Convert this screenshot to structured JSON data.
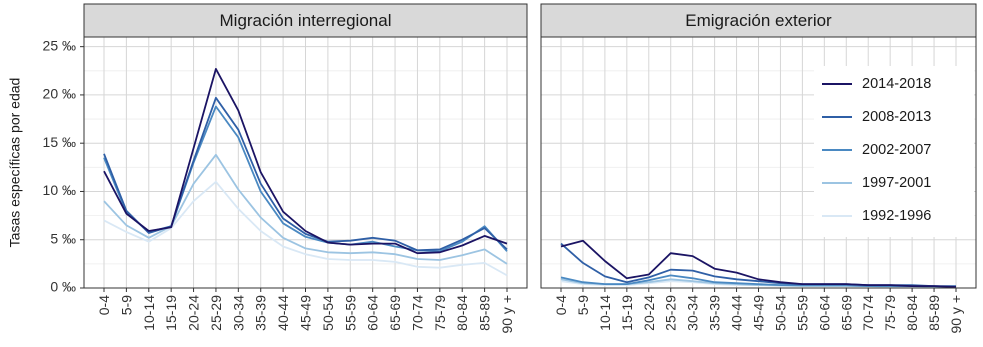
{
  "chart_data": {
    "type": "line",
    "ylabel": "Tasas específicas por edad",
    "y_unit": "‰",
    "ylim": [
      0,
      26
    ],
    "y_ticks": [
      0,
      5,
      10,
      15,
      20,
      25
    ],
    "y_tick_labels": [
      "0 ‰",
      "5 ‰",
      "10 ‰",
      "15 ‰",
      "20 ‰",
      "25 ‰"
    ],
    "categories": [
      "0-4",
      "5-9",
      "10-14",
      "15-19",
      "20-24",
      "25-29",
      "30-34",
      "35-39",
      "40-44",
      "45-49",
      "50-54",
      "55-59",
      "60-64",
      "65-69",
      "70-74",
      "75-79",
      "80-84",
      "85-89",
      "90 y +"
    ],
    "legend": {
      "position": "right, inside second panel",
      "entries": [
        {
          "label": "2014-2018",
          "color": "#1b1464"
        },
        {
          "label": "2008-2013",
          "color": "#2f5fa6"
        },
        {
          "label": "2002-2007",
          "color": "#4a89c2"
        },
        {
          "label": "1997-2001",
          "color": "#9cc4e2"
        },
        {
          "label": "1992-1996",
          "color": "#d9e8f5"
        }
      ]
    },
    "panels": [
      {
        "title": "Migración interregional",
        "series": [
          {
            "name": "1992-1996",
            "color": "#d9e8f5",
            "values": [
              7.0,
              5.8,
              4.8,
              6.2,
              9.0,
              11.0,
              8.2,
              5.9,
              4.3,
              3.5,
              3.0,
              2.9,
              2.9,
              2.7,
              2.2,
              2.1,
              2.4,
              2.6,
              1.3
            ]
          },
          {
            "name": "1997-2001",
            "color": "#9cc4e2",
            "values": [
              9.0,
              6.5,
              5.2,
              6.4,
              10.8,
              13.8,
              10.2,
              7.3,
              5.2,
              4.1,
              3.7,
              3.6,
              3.7,
              3.5,
              3.0,
              2.9,
              3.4,
              4.0,
              2.5
            ]
          },
          {
            "name": "2002-2007",
            "color": "#4a89c2",
            "values": [
              13.5,
              7.8,
              5.8,
              6.4,
              13.0,
              18.8,
              15.6,
              10.0,
              6.7,
              5.3,
              4.7,
              4.5,
              4.8,
              4.3,
              3.9,
              3.8,
              4.8,
              6.4,
              3.8
            ]
          },
          {
            "name": "2008-2013",
            "color": "#2f5fa6",
            "values": [
              13.9,
              8.0,
              5.7,
              6.4,
              13.2,
              19.7,
              16.4,
              10.8,
              7.2,
              5.6,
              4.8,
              4.9,
              5.2,
              4.9,
              3.9,
              4.0,
              5.0,
              6.2,
              4.0
            ]
          },
          {
            "name": "2014-2018",
            "color": "#1b1464",
            "values": [
              12.1,
              7.7,
              5.9,
              6.3,
              14.5,
              22.7,
              18.4,
              12.0,
              7.9,
              5.9,
              4.7,
              4.5,
              4.6,
              4.6,
              3.6,
              3.7,
              4.4,
              5.4,
              4.6
            ]
          }
        ]
      },
      {
        "title": "Emigración exterior",
        "series": [
          {
            "name": "1992-1996",
            "color": "#d9e8f5",
            "values": [
              0.7,
              0.4,
              0.3,
              0.3,
              0.5,
              0.7,
              0.6,
              0.4,
              0.3,
              0.3,
              0.2,
              0.2,
              0.2,
              0.2,
              0.2,
              0.1,
              0.1,
              0.1,
              0.1
            ]
          },
          {
            "name": "1997-2001",
            "color": "#9cc4e2",
            "values": [
              0.9,
              0.5,
              0.4,
              0.4,
              0.6,
              0.9,
              0.7,
              0.5,
              0.4,
              0.3,
              0.3,
              0.2,
              0.2,
              0.2,
              0.2,
              0.2,
              0.2,
              0.1,
              0.1
            ]
          },
          {
            "name": "2002-2007",
            "color": "#4a89c2",
            "values": [
              1.1,
              0.6,
              0.4,
              0.4,
              0.8,
              1.3,
              1.0,
              0.6,
              0.5,
              0.4,
              0.3,
              0.3,
              0.3,
              0.3,
              0.2,
              0.2,
              0.2,
              0.2,
              0.1
            ]
          },
          {
            "name": "2008-2013",
            "color": "#2f5fa6",
            "values": [
              4.6,
              2.6,
              1.2,
              0.6,
              1.1,
              1.9,
              1.8,
              1.2,
              0.9,
              0.7,
              0.5,
              0.4,
              0.4,
              0.4,
              0.3,
              0.3,
              0.3,
              0.2,
              0.2
            ]
          },
          {
            "name": "2014-2018",
            "color": "#1b1464",
            "values": [
              4.3,
              4.9,
              2.8,
              1.0,
              1.4,
              3.6,
              3.3,
              2.0,
              1.6,
              0.9,
              0.6,
              0.4,
              0.4,
              0.4,
              0.3,
              0.3,
              0.2,
              0.2,
              0.1
            ]
          }
        ]
      }
    ]
  }
}
